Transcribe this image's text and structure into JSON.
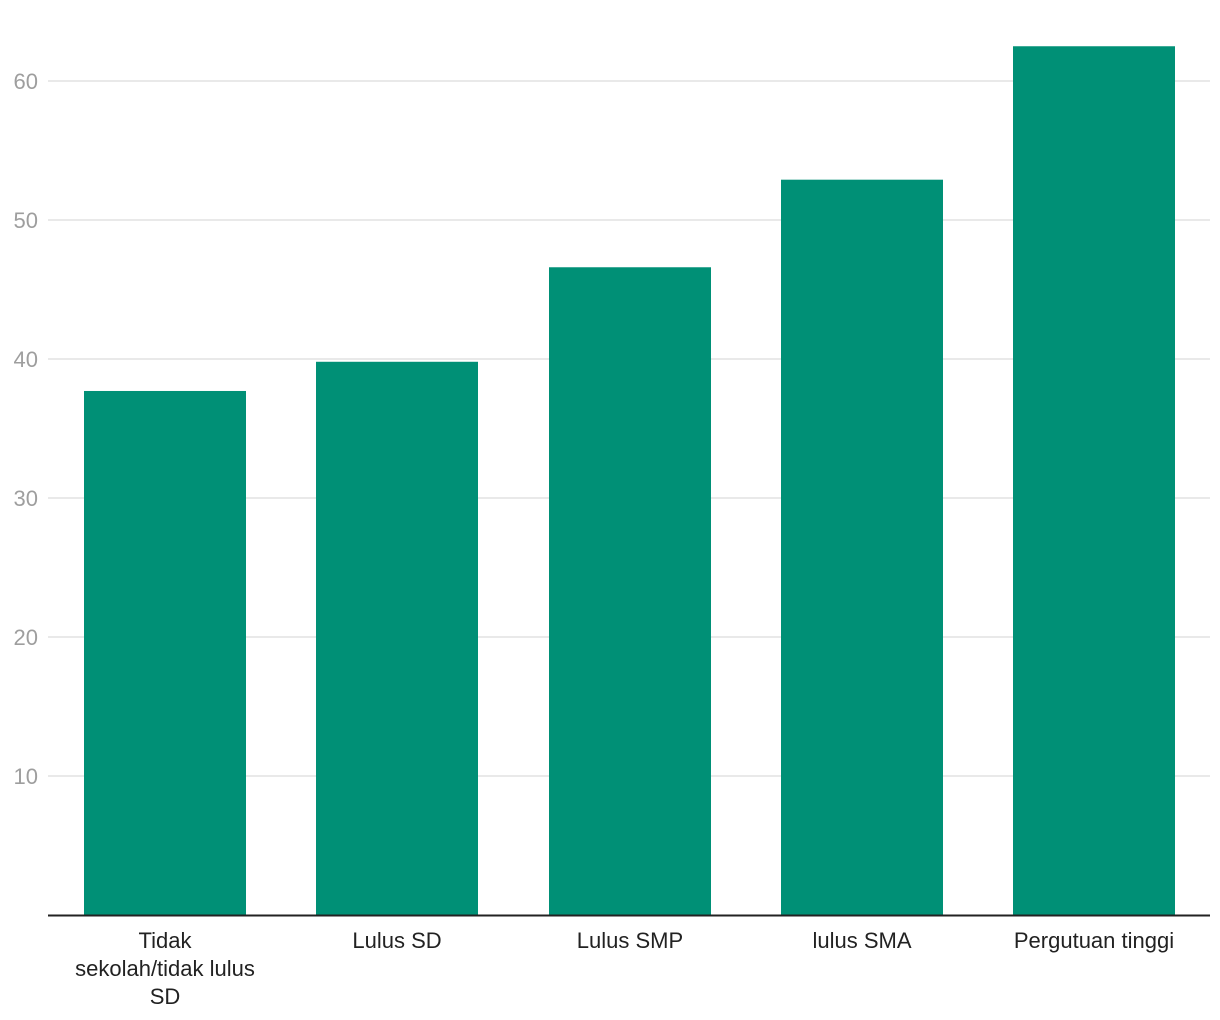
{
  "chart_data": {
    "type": "bar",
    "title": "",
    "xlabel": "",
    "ylabel": "",
    "categories": [
      "Tidak sekolah/tidak lulus SD",
      "Lulus SD",
      "Lulus SMP",
      "lulus SMA",
      "Pergutuan tinggi"
    ],
    "category_label_lines": [
      [
        "Tidak",
        "sekolah/tidak lulus",
        "SD"
      ],
      [
        "Lulus SD"
      ],
      [
        "Lulus SMP"
      ],
      [
        "lulus SMA"
      ],
      [
        "Pergutuan tinggi"
      ]
    ],
    "values": [
      37.7,
      39.8,
      46.6,
      52.9,
      62.5
    ],
    "ylim": [
      0,
      66
    ],
    "yticks": [
      10,
      20,
      30,
      40,
      50,
      60
    ],
    "grid": true,
    "legend": "none",
    "colors": {
      "bar": "#009076",
      "grid": "#e2e2e2",
      "axis": "#222222",
      "tick_text": "#9e9e9e",
      "label_text": "#222222"
    }
  }
}
